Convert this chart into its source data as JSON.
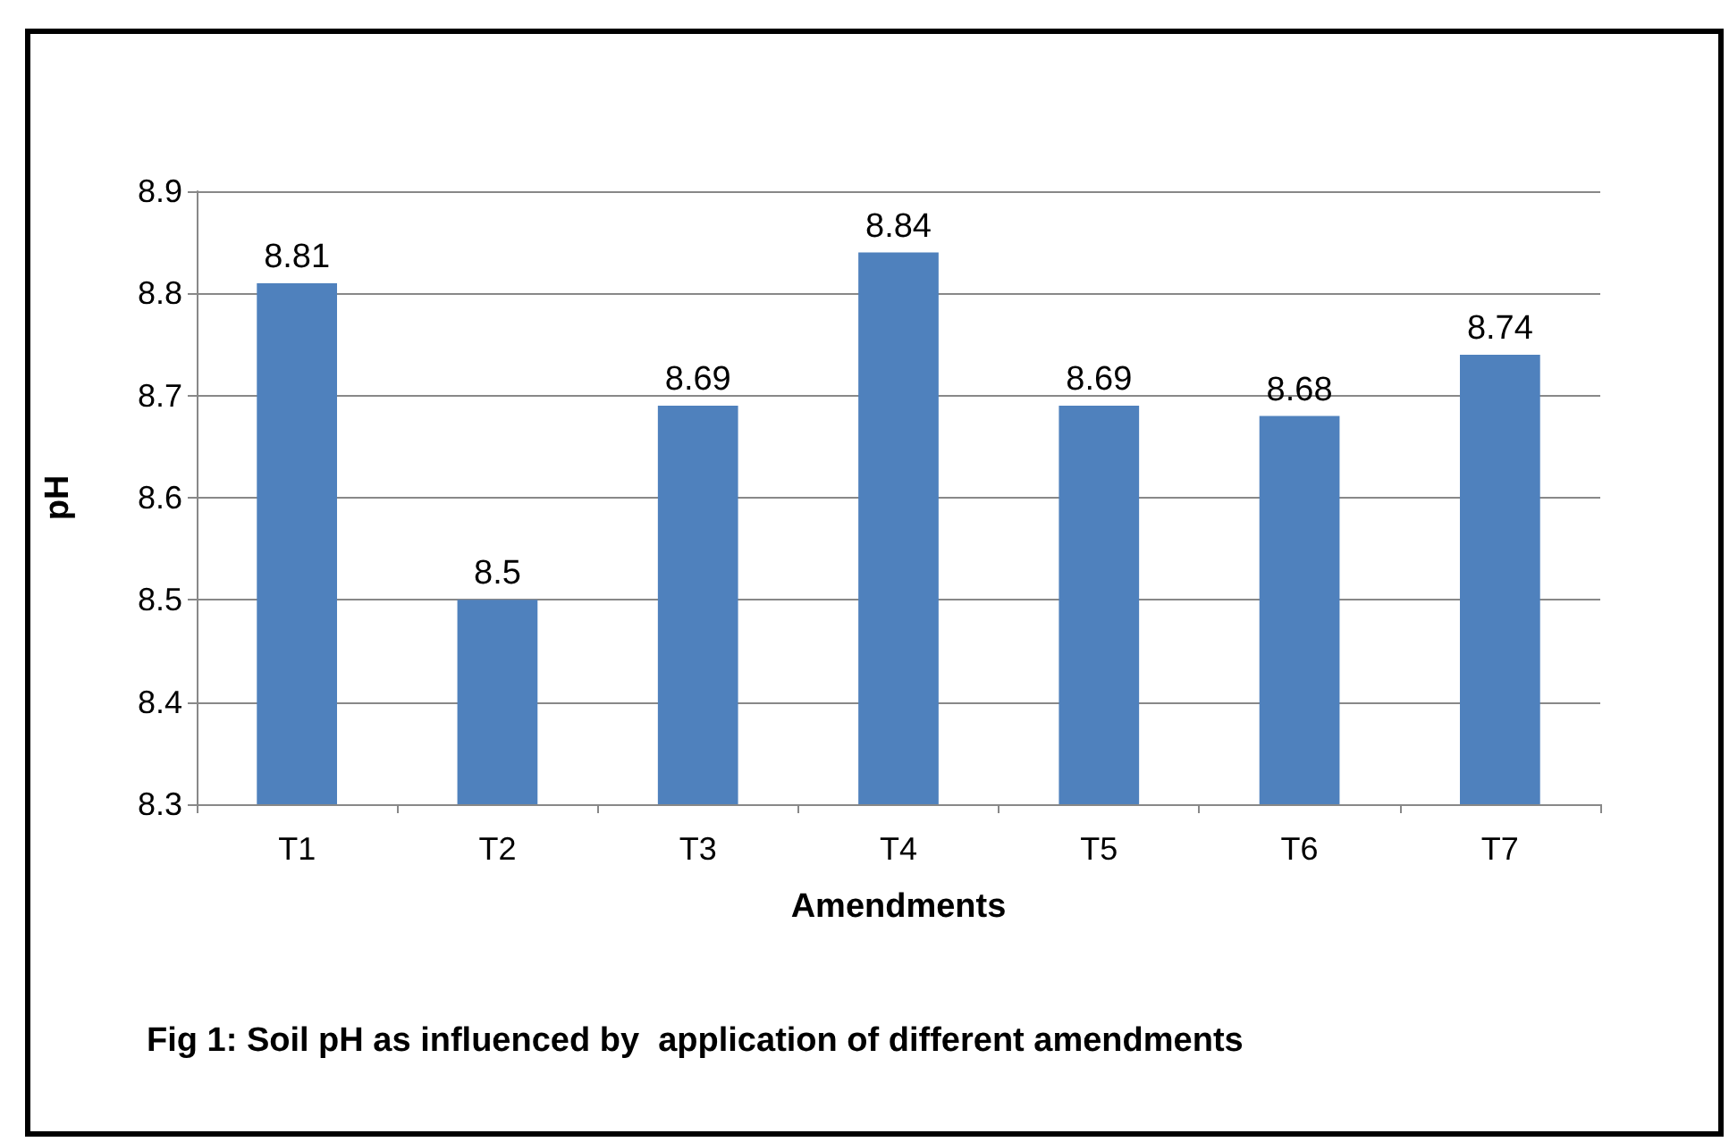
{
  "chart_data": {
    "type": "bar",
    "xlabel": "Amendments",
    "ylabel": "pH",
    "categories": [
      "T1",
      "T2",
      "T3",
      "T4",
      "T5",
      "T6",
      "T7"
    ],
    "values": [
      8.81,
      8.5,
      8.69,
      8.84,
      8.69,
      8.68,
      8.74
    ],
    "color": "#4f81bd",
    "ylim": [
      8.3,
      8.9
    ],
    "yticks": [
      8.3,
      8.4,
      8.5,
      8.6,
      8.7,
      8.8,
      8.9
    ],
    "grid": "y",
    "data_labels": true,
    "annotations": [
      "Fig 1: Soil pH as influenced by  application of different amendments"
    ]
  }
}
